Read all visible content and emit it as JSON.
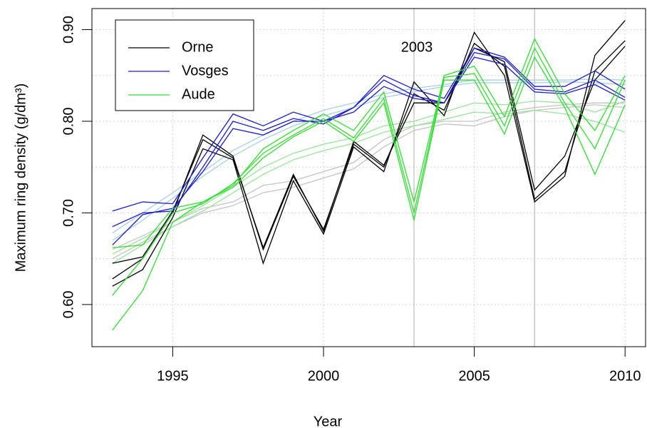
{
  "chart_data": {
    "type": "line",
    "y_label": "Maximum ring density (g/dm³)",
    "x_label": "Year",
    "annotation": "2003",
    "x": [
      1993,
      1994,
      1995,
      1996,
      1997,
      1998,
      1999,
      2000,
      2001,
      2002,
      2003,
      2004,
      2005,
      2006,
      2007,
      2008,
      2009,
      2010
    ],
    "xlim": [
      1992.32,
      2010.68
    ],
    "xticks": [
      1995,
      2000,
      2005,
      2010
    ],
    "ylim": [
      0.554,
      0.923
    ],
    "yticks": [
      {
        "value": 0.6,
        "label": "0.60"
      },
      {
        "value": 0.7,
        "label": "0.70"
      },
      {
        "value": 0.8,
        "label": "0.80"
      },
      {
        "value": 0.9,
        "label": "0.90"
      }
    ],
    "ygrid": [
      0.6,
      0.65,
      0.7,
      0.75,
      0.8,
      0.85,
      0.9
    ],
    "vlines": [
      2003,
      2007
    ],
    "grid": true,
    "legend": "top-left",
    "series": [
      {
        "color": "#c4c4c4",
        "values": [
          0.66,
          0.675,
          0.69,
          0.705,
          0.712,
          0.73,
          0.735,
          0.745,
          0.755,
          0.78,
          0.795,
          0.8,
          0.8,
          0.81,
          0.815,
          0.818,
          0.82,
          0.82
        ]
      },
      {
        "color": "#c4c4c4",
        "values": [
          0.65,
          0.668,
          0.685,
          0.7,
          0.708,
          0.722,
          0.728,
          0.738,
          0.748,
          0.772,
          0.79,
          0.797,
          0.795,
          0.805,
          0.812,
          0.815,
          0.818,
          0.815
        ]
      },
      {
        "color": "#a8d0e6",
        "values": [
          0.678,
          0.7,
          0.722,
          0.745,
          0.768,
          0.785,
          0.8,
          0.812,
          0.82,
          0.83,
          0.836,
          0.84,
          0.845,
          0.845,
          0.845,
          0.845,
          0.846,
          0.845
        ]
      },
      {
        "color": "#a8d0e6",
        "values": [
          0.67,
          0.692,
          0.716,
          0.74,
          0.762,
          0.78,
          0.795,
          0.806,
          0.815,
          0.826,
          0.832,
          0.838,
          0.842,
          0.842,
          0.842,
          0.843,
          0.842,
          0.84
        ]
      },
      {
        "color": "#98e698",
        "values": [
          0.655,
          0.672,
          0.69,
          0.708,
          0.728,
          0.75,
          0.765,
          0.775,
          0.782,
          0.795,
          0.8,
          0.81,
          0.82,
          0.818,
          0.822,
          0.82,
          0.81,
          0.822
        ]
      },
      {
        "color": "#98e698",
        "values": [
          0.645,
          0.665,
          0.685,
          0.702,
          0.722,
          0.742,
          0.758,
          0.768,
          0.776,
          0.788,
          0.795,
          0.802,
          0.81,
          0.808,
          0.812,
          0.808,
          0.8,
          0.788
        ]
      },
      {
        "name": "Orne",
        "color": "#000000",
        "values": [
          0.628,
          0.65,
          0.7,
          0.785,
          0.762,
          0.66,
          0.74,
          0.682,
          0.775,
          0.75,
          0.83,
          0.812,
          0.885,
          0.86,
          0.715,
          0.745,
          0.855,
          0.888
        ]
      },
      {
        "color": "#000000",
        "values": [
          0.62,
          0.638,
          0.695,
          0.77,
          0.758,
          0.645,
          0.735,
          0.677,
          0.772,
          0.745,
          0.843,
          0.806,
          0.897,
          0.85,
          0.712,
          0.74,
          0.872,
          0.91
        ]
      },
      {
        "color": "#000000",
        "values": [
          0.645,
          0.652,
          0.702,
          0.78,
          0.76,
          0.662,
          0.742,
          0.68,
          0.778,
          0.752,
          0.82,
          0.82,
          0.88,
          0.865,
          0.725,
          0.762,
          0.845,
          0.882
        ]
      },
      {
        "name": "Vosges",
        "color": "#1c1ccd",
        "values": [
          0.702,
          0.712,
          0.71,
          0.76,
          0.808,
          0.795,
          0.81,
          0.8,
          0.815,
          0.85,
          0.835,
          0.825,
          0.88,
          0.87,
          0.838,
          0.838,
          0.855,
          0.835
        ]
      },
      {
        "color": "#1c1ccd",
        "values": [
          0.685,
          0.7,
          0.702,
          0.75,
          0.8,
          0.79,
          0.803,
          0.797,
          0.815,
          0.845,
          0.828,
          0.82,
          0.875,
          0.868,
          0.835,
          0.832,
          0.845,
          0.826
        ]
      },
      {
        "color": "#1c1ccd",
        "values": [
          0.665,
          0.698,
          0.705,
          0.745,
          0.792,
          0.785,
          0.8,
          0.8,
          0.81,
          0.838,
          0.825,
          0.82,
          0.87,
          0.862,
          0.832,
          0.83,
          0.84,
          0.823
        ]
      },
      {
        "name": "Aude",
        "color": "#33dd33",
        "values": [
          0.662,
          0.665,
          0.705,
          0.712,
          0.73,
          0.77,
          0.79,
          0.808,
          0.79,
          0.832,
          0.712,
          0.85,
          0.86,
          0.805,
          0.89,
          0.83,
          0.79,
          0.85
        ]
      },
      {
        "color": "#33dd33",
        "values": [
          0.61,
          0.65,
          0.7,
          0.71,
          0.732,
          0.765,
          0.785,
          0.803,
          0.782,
          0.825,
          0.7,
          0.848,
          0.852,
          0.795,
          0.88,
          0.82,
          0.77,
          0.845
        ]
      },
      {
        "color": "#33dd33",
        "values": [
          0.572,
          0.615,
          0.69,
          0.712,
          0.728,
          0.76,
          0.783,
          0.8,
          0.778,
          0.82,
          0.692,
          0.845,
          0.845,
          0.786,
          0.87,
          0.815,
          0.742,
          0.818
        ]
      }
    ]
  }
}
